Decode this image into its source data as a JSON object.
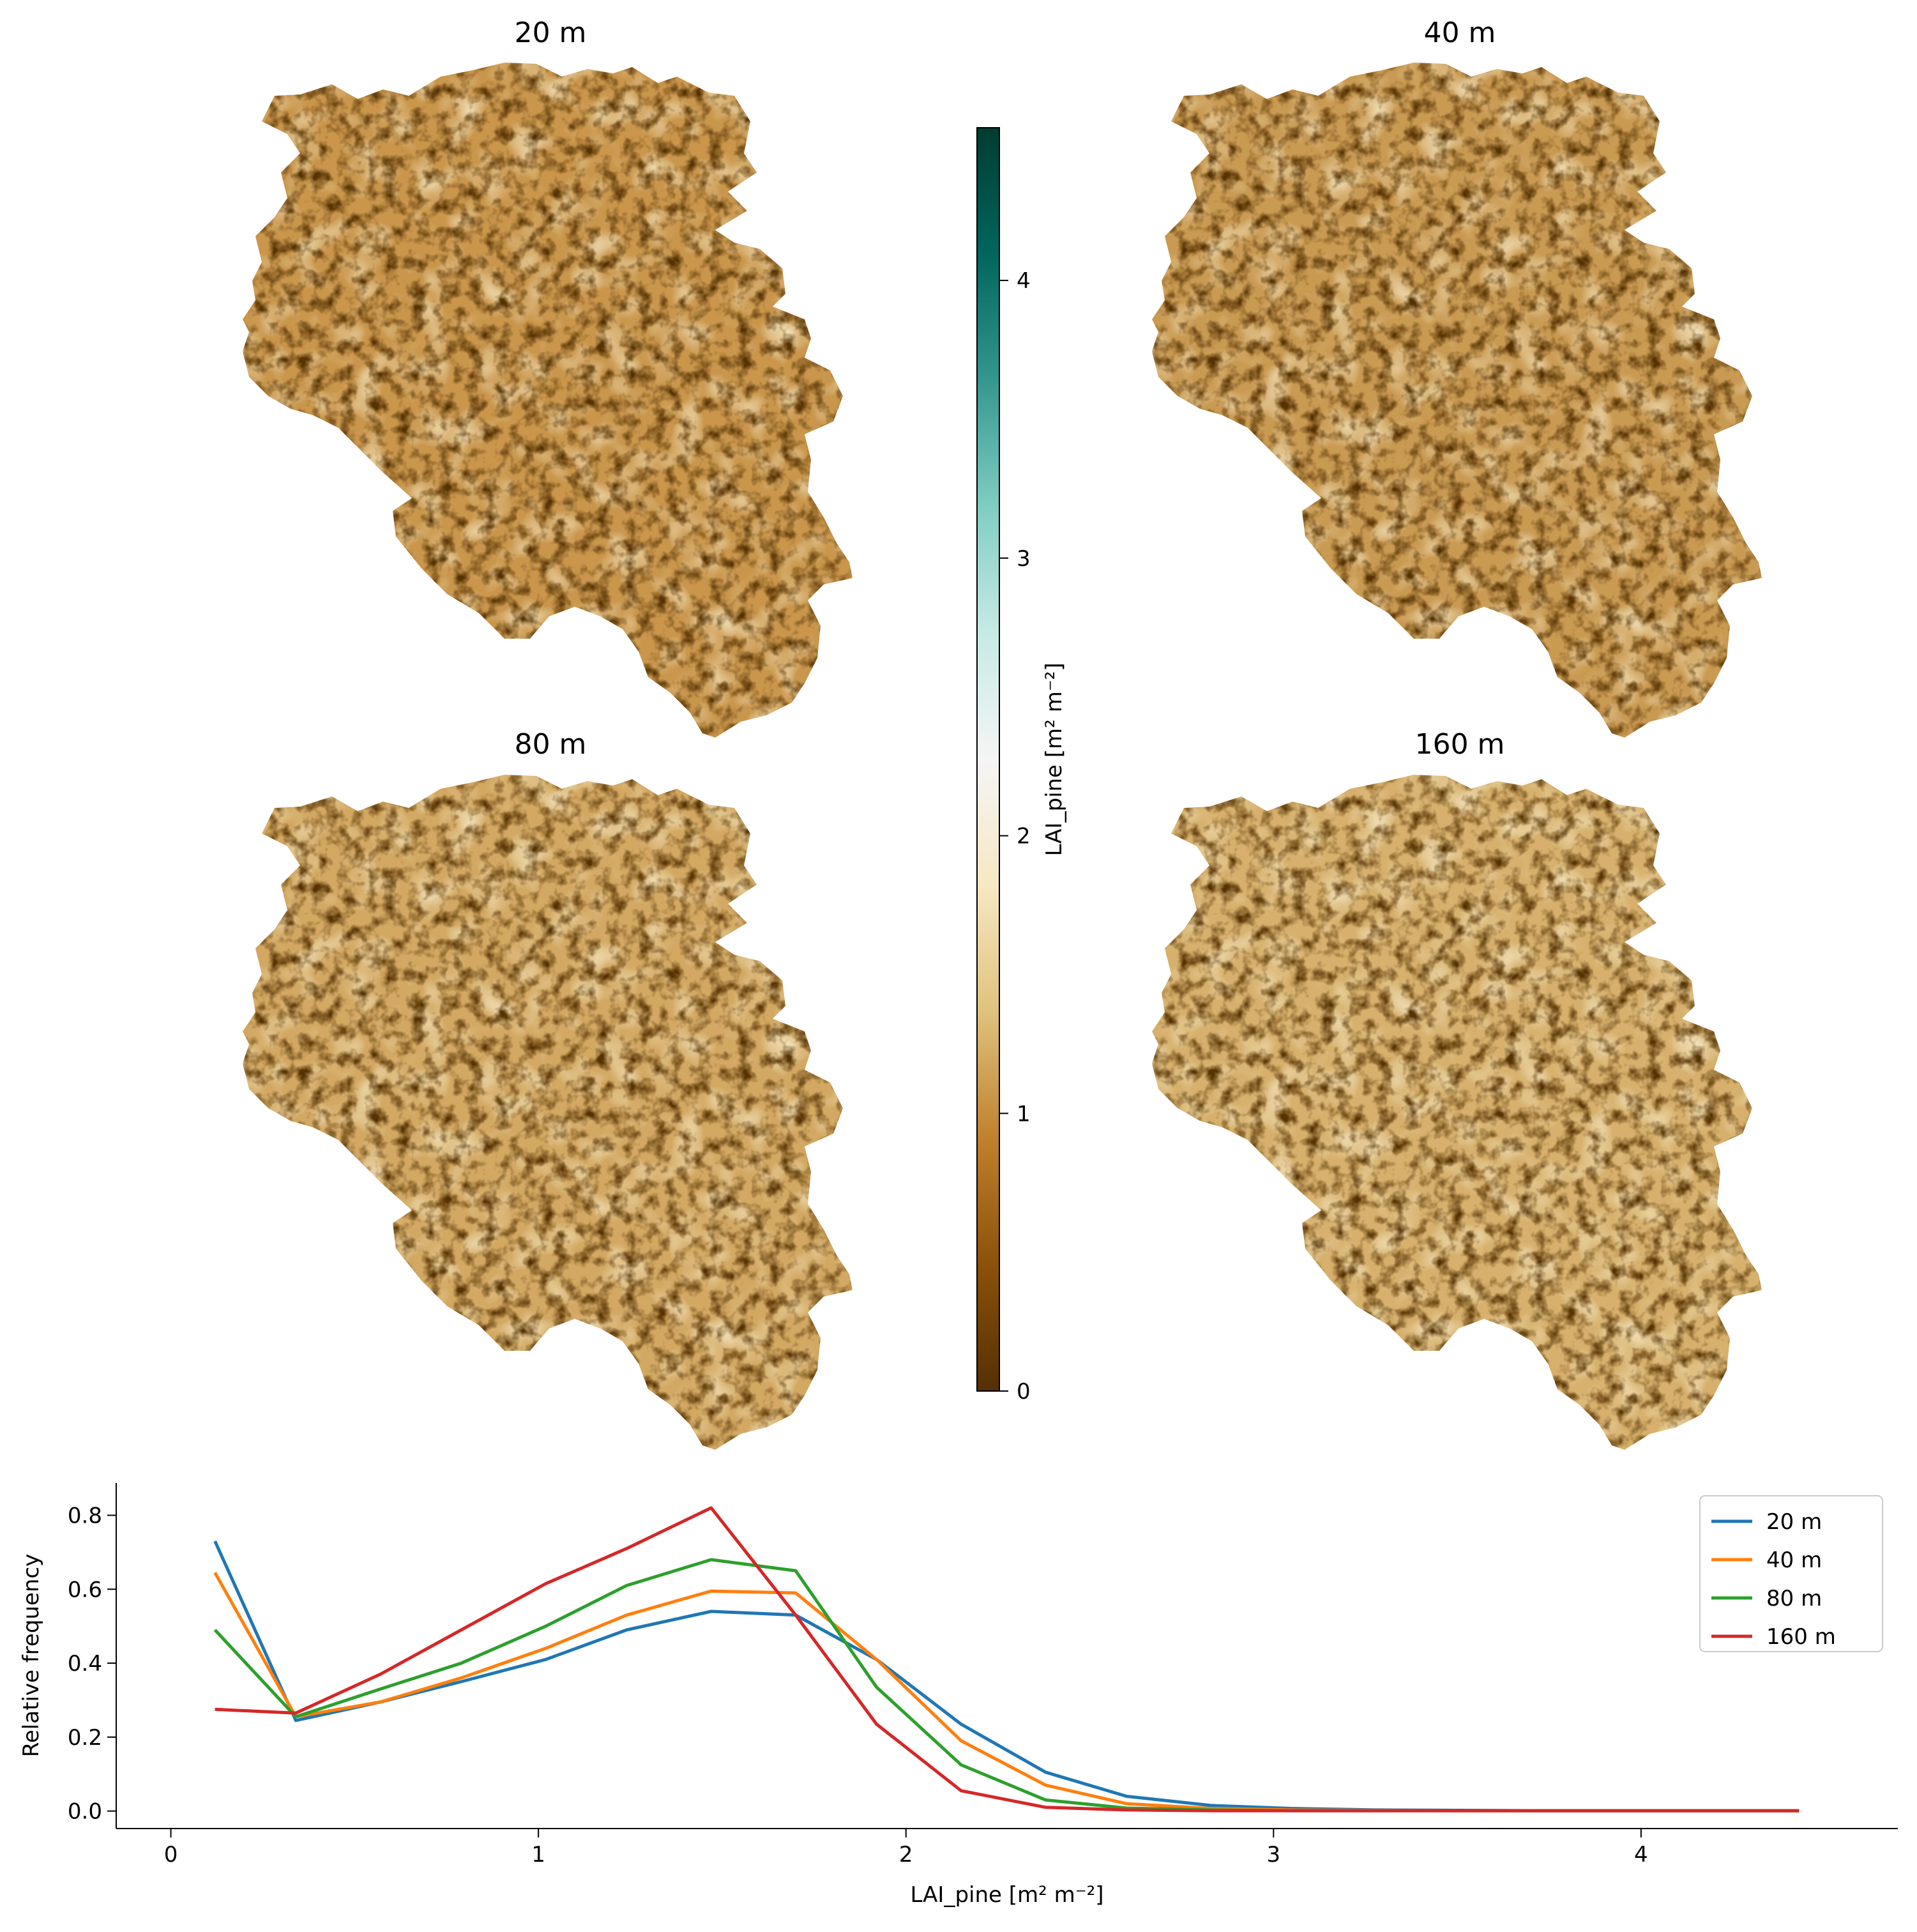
{
  "chart_data": [
    {
      "type": "heatmap",
      "panels": [
        {
          "title": "20 m",
          "resolution_m": 20
        },
        {
          "title": "40 m",
          "resolution_m": 40
        },
        {
          "title": "80 m",
          "resolution_m": 80
        },
        {
          "title": "160 m",
          "resolution_m": 160
        }
      ],
      "colorbar": {
        "label": "LAI_pine [m² m⁻²]",
        "range": [
          0,
          4.55
        ],
        "ticks": [
          "0",
          "1",
          "2",
          "3",
          "4"
        ],
        "tick_values": [
          0,
          1,
          2,
          3,
          4
        ],
        "colormap": "BrBG",
        "stops": [
          "#543005",
          "#8c510a",
          "#bf812d",
          "#dfc27d",
          "#f6e8c3",
          "#f5f5f5",
          "#c7eae5",
          "#80cdc1",
          "#35978f",
          "#01665e",
          "#003c30"
        ]
      }
    },
    {
      "type": "line",
      "xlabel": "LAI_pine [m² m⁻²]",
      "ylabel": "Relative frequency",
      "xlim": [
        -0.1,
        4.65
      ],
      "ylim": [
        -0.03,
        0.87
      ],
      "xticks": [
        "0",
        "1",
        "2",
        "3",
        "4"
      ],
      "xtick_values": [
        0,
        1,
        2,
        3,
        4
      ],
      "yticks": [
        "0.0",
        "0.2",
        "0.4",
        "0.6",
        "0.8"
      ],
      "ytick_values": [
        0,
        0.2,
        0.4,
        0.6,
        0.8
      ],
      "legend_position": "top-right",
      "x": [
        0.12,
        0.34,
        0.57,
        0.79,
        1.02,
        1.24,
        1.47,
        1.7,
        1.92,
        2.15,
        2.38,
        2.6,
        2.83,
        3.05,
        3.28,
        3.51,
        3.73,
        3.96,
        4.19,
        4.43
      ],
      "series": [
        {
          "name": "20 m",
          "color": "#1f77b4",
          "values": [
            0.73,
            0.245,
            0.295,
            0.35,
            0.41,
            0.49,
            0.54,
            0.53,
            0.41,
            0.235,
            0.105,
            0.04,
            0.015,
            0.007,
            0.003,
            0.002,
            0.001,
            0.001,
            0.001,
            0.001
          ]
        },
        {
          "name": "40 m",
          "color": "#ff7f0e",
          "values": [
            0.645,
            0.255,
            0.295,
            0.36,
            0.44,
            0.53,
            0.595,
            0.59,
            0.41,
            0.19,
            0.07,
            0.02,
            0.007,
            0.003,
            0.002,
            0.001,
            0.001,
            0.001,
            0.001,
            0.001
          ]
        },
        {
          "name": "80 m",
          "color": "#2ca02c",
          "values": [
            0.49,
            0.255,
            0.33,
            0.4,
            0.5,
            0.61,
            0.68,
            0.65,
            0.335,
            0.125,
            0.03,
            0.008,
            0.003,
            0.001,
            0.001,
            0.001,
            0.001,
            0.001,
            0.001,
            0.001
          ]
        },
        {
          "name": "160 m",
          "color": "#d62728",
          "values": [
            0.275,
            0.265,
            0.37,
            0.49,
            0.615,
            0.71,
            0.82,
            0.53,
            0.235,
            0.055,
            0.01,
            0.003,
            0.001,
            0.001,
            0.001,
            0.001,
            0.001,
            0.001,
            0.001,
            0.001
          ]
        }
      ]
    }
  ]
}
